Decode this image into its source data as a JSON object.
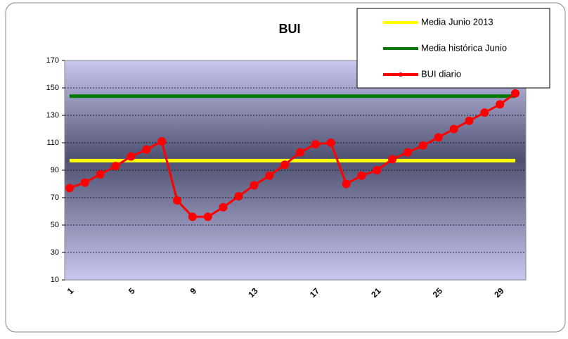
{
  "chart_data": {
    "type": "line",
    "title": "BUI",
    "categories": [
      "1",
      null,
      null,
      null,
      "5",
      null,
      null,
      null,
      "9",
      null,
      null,
      null,
      "13",
      null,
      null,
      null,
      "17",
      null,
      null,
      null,
      "21",
      null,
      null,
      null,
      "25",
      null,
      null,
      null,
      "29",
      null
    ],
    "series": [
      {
        "name": "Media Junio 2013",
        "color": "#ffff00",
        "markers": false,
        "values": [
          97,
          97,
          97,
          97,
          97,
          97,
          97,
          97,
          97,
          97,
          97,
          97,
          97,
          97,
          97,
          97,
          97,
          97,
          97,
          97,
          97,
          97,
          97,
          97,
          97,
          97,
          97,
          97,
          97,
          97
        ]
      },
      {
        "name": "Media histórica Junio",
        "color": "#007a00",
        "markers": false,
        "values": [
          144,
          144,
          144,
          144,
          144,
          144,
          144,
          144,
          144,
          144,
          144,
          144,
          144,
          144,
          144,
          144,
          144,
          144,
          144,
          144,
          144,
          144,
          144,
          144,
          144,
          144,
          144,
          144,
          144,
          144
        ]
      },
      {
        "name": "BUI diario",
        "color": "#ff0000",
        "markers": true,
        "values": [
          77,
          81,
          87,
          93,
          100,
          105,
          111,
          68,
          56,
          56,
          63,
          71,
          79,
          86,
          94,
          103,
          109,
          110,
          80,
          86,
          90,
          98,
          103,
          108,
          114,
          120,
          126,
          132,
          138,
          146
        ]
      }
    ],
    "ylim": [
      10,
      170
    ],
    "yticks": [
      10,
      30,
      50,
      70,
      90,
      110,
      130,
      150,
      170
    ],
    "grid": true
  }
}
